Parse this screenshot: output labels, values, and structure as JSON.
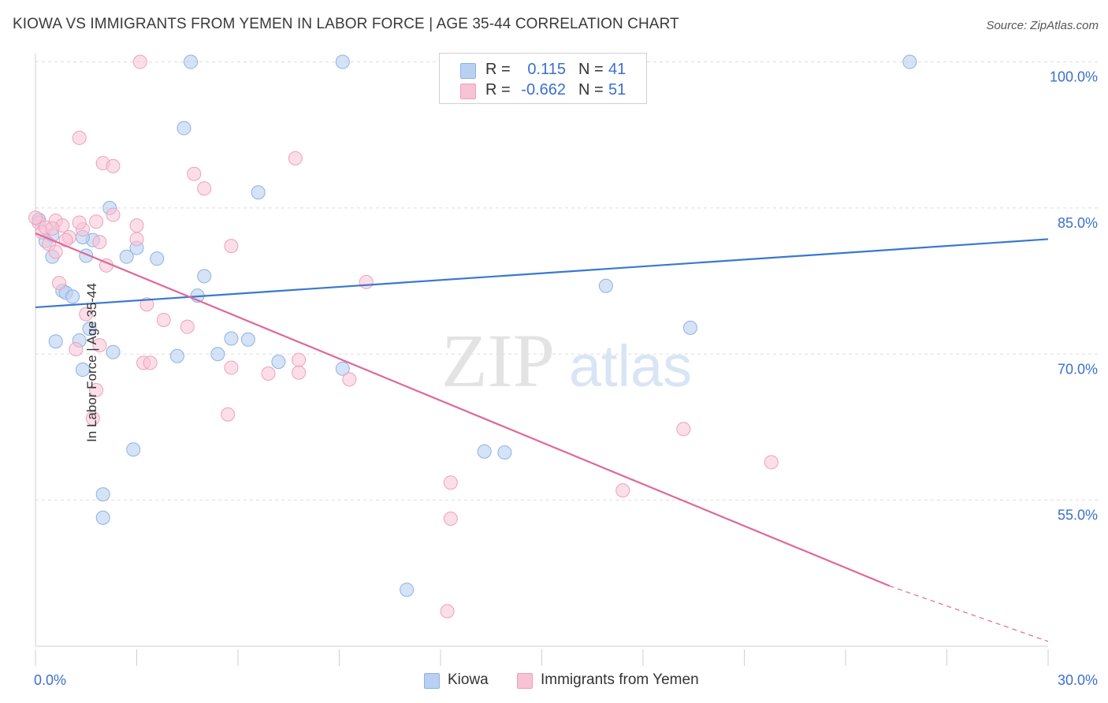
{
  "title": "KIOWA VS IMMIGRANTS FROM YEMEN IN LABOR FORCE | AGE 35-44 CORRELATION CHART",
  "source": "Source: ZipAtlas.com",
  "watermark": {
    "zip": "ZIP",
    "atlas": "atlas"
  },
  "legend": {
    "rows": [
      {
        "r_label": "R =",
        "r_value": "0.115",
        "n_label": "N =",
        "n_value": "41"
      },
      {
        "r_label": "R =",
        "r_value": "-0.662",
        "n_label": "N =",
        "n_value": "51"
      }
    ]
  },
  "bottom_legend": {
    "kiowa": "Kiowa",
    "yemen": "Immigrants from Yemen"
  },
  "colors": {
    "kiowa_fill": "#b9d0f2",
    "kiowa_stroke": "#8fb1e4",
    "kiowa_line": "#3a78cf",
    "yemen_fill": "#f7c3d5",
    "yemen_stroke": "#eea0bb",
    "yemen_line": "#e0679a",
    "axis_text": "#3b6fd0",
    "grid": "#dddddd"
  },
  "chart_data": {
    "type": "scatter",
    "title": "KIOWA VS IMMIGRANTS FROM YEMEN IN LABOR FORCE | AGE 35-44 CORRELATION CHART",
    "xlabel": "",
    "ylabel": "In Labor Force | Age 35-44",
    "xlim": [
      0,
      30
    ],
    "ylim": [
      40,
      101.5
    ],
    "x_tick_labels": [
      {
        "value": 0,
        "label": "0.0%"
      },
      {
        "value": 30,
        "label": "30.0%"
      }
    ],
    "y_tick_labels": [
      {
        "value": 100,
        "label": "100.0%"
      },
      {
        "value": 85,
        "label": "85.0%"
      },
      {
        "value": 70,
        "label": "70.0%"
      },
      {
        "value": 55,
        "label": "55.0%"
      }
    ],
    "grid": true,
    "series": [
      {
        "name": "Kiowa",
        "R": 0.115,
        "N": 41,
        "trend": {
          "x": [
            0,
            30
          ],
          "y": [
            74.8,
            81.8
          ],
          "dashed_from": null
        },
        "points": [
          [
            0.1,
            83.8
          ],
          [
            0.3,
            81.6
          ],
          [
            0.5,
            80.0
          ],
          [
            0.8,
            76.5
          ],
          [
            0.9,
            76.3
          ],
          [
            1.1,
            75.9
          ],
          [
            0.6,
            71.3
          ],
          [
            1.3,
            71.4
          ],
          [
            1.6,
            72.6
          ],
          [
            1.4,
            68.4
          ],
          [
            2.3,
            70.2
          ],
          [
            2.2,
            85.0
          ],
          [
            1.7,
            81.7
          ],
          [
            1.5,
            80.1
          ],
          [
            2.7,
            80.0
          ],
          [
            3.0,
            80.9
          ],
          [
            3.6,
            79.8
          ],
          [
            4.2,
            69.8
          ],
          [
            2.9,
            60.2
          ],
          [
            4.4,
            93.2
          ],
          [
            4.6,
            100.0
          ],
          [
            4.8,
            76.0
          ],
          [
            5.0,
            78.0
          ],
          [
            5.4,
            70.0
          ],
          [
            5.8,
            71.6
          ],
          [
            6.3,
            71.5
          ],
          [
            6.6,
            86.6
          ],
          [
            7.2,
            69.2
          ],
          [
            9.1,
            100.0
          ],
          [
            9.1,
            68.5
          ],
          [
            2.0,
            55.6
          ],
          [
            2.0,
            53.2
          ],
          [
            11.0,
            45.8
          ],
          [
            13.3,
            60.0
          ],
          [
            13.9,
            59.9
          ],
          [
            17.0,
            100.0
          ],
          [
            16.9,
            77.0
          ],
          [
            19.4,
            72.7
          ],
          [
            25.9,
            100.0
          ],
          [
            0.5,
            82.2
          ],
          [
            1.4,
            82.0
          ]
        ]
      },
      {
        "name": "Immigrants from Yemen",
        "R": -0.662,
        "N": 51,
        "trend": {
          "x": [
            0,
            25.3
          ],
          "y": [
            82.4,
            46.2
          ],
          "dashed_to": {
            "x": 30,
            "y": 40.5
          }
        },
        "points": [
          [
            0.1,
            83.5
          ],
          [
            0.2,
            82.5
          ],
          [
            0.3,
            83.0
          ],
          [
            0.4,
            81.3
          ],
          [
            0.6,
            83.7
          ],
          [
            0.8,
            83.2
          ],
          [
            1.0,
            82.0
          ],
          [
            1.4,
            82.8
          ],
          [
            1.3,
            83.5
          ],
          [
            1.8,
            83.6
          ],
          [
            2.1,
            79.1
          ],
          [
            1.9,
            81.5
          ],
          [
            2.3,
            84.3
          ],
          [
            0.6,
            80.5
          ],
          [
            0.7,
            77.3
          ],
          [
            1.5,
            74.1
          ],
          [
            1.2,
            70.5
          ],
          [
            1.9,
            70.9
          ],
          [
            1.8,
            66.3
          ],
          [
            1.7,
            63.4
          ],
          [
            1.3,
            92.2
          ],
          [
            2.0,
            89.6
          ],
          [
            2.3,
            89.3
          ],
          [
            3.0,
            83.2
          ],
          [
            3.0,
            81.8
          ],
          [
            3.3,
            75.1
          ],
          [
            3.2,
            69.1
          ],
          [
            3.4,
            69.1
          ],
          [
            3.8,
            73.5
          ],
          [
            4.5,
            72.8
          ],
          [
            4.7,
            88.5
          ],
          [
            5.0,
            87.0
          ],
          [
            5.8,
            81.1
          ],
          [
            5.8,
            68.6
          ],
          [
            5.7,
            63.8
          ],
          [
            6.9,
            68.0
          ],
          [
            7.7,
            90.1
          ],
          [
            7.8,
            69.4
          ],
          [
            7.8,
            68.1
          ],
          [
            9.3,
            67.4
          ],
          [
            9.8,
            77.4
          ],
          [
            3.1,
            100.0
          ],
          [
            12.3,
            56.8
          ],
          [
            12.3,
            53.1
          ],
          [
            12.2,
            43.6
          ],
          [
            17.4,
            56.0
          ],
          [
            19.2,
            62.3
          ],
          [
            21.8,
            58.9
          ],
          [
            0.0,
            84.0
          ],
          [
            0.9,
            81.7
          ],
          [
            0.5,
            82.9
          ]
        ]
      }
    ]
  }
}
